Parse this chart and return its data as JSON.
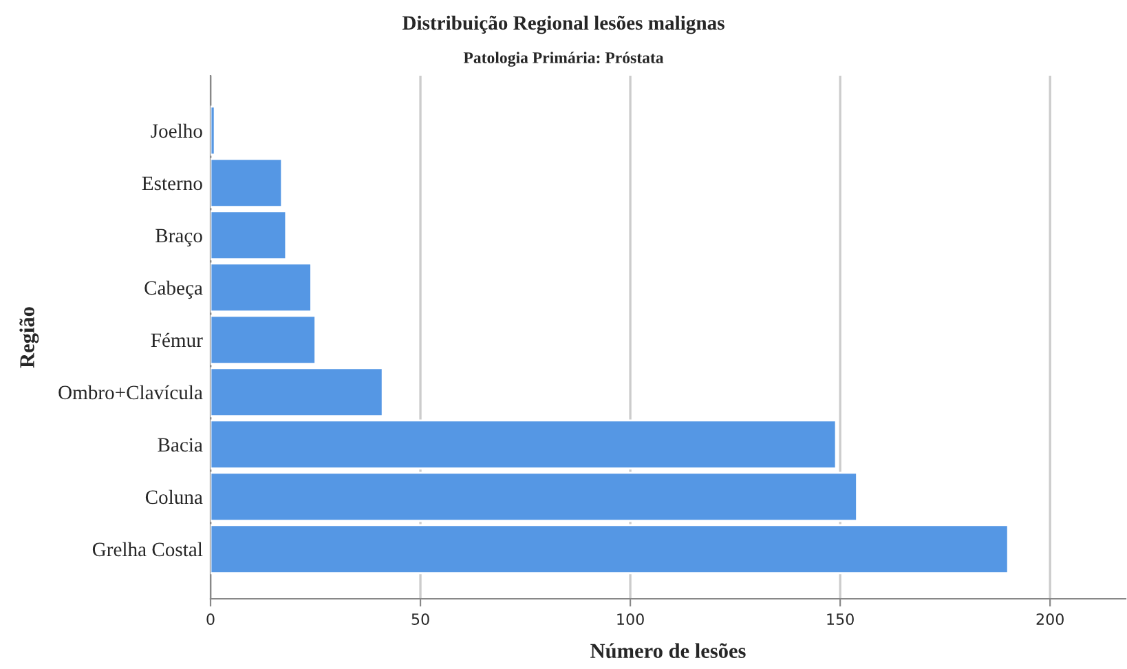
{
  "chart_data": {
    "type": "bar",
    "orientation": "horizontal",
    "title": "Distribuição Regional lesões malignas",
    "subtitle": "Patologia Primária: Próstata",
    "xlabel": "Número de lesões",
    "ylabel": "Região",
    "categories": [
      "Joelho",
      "Esterno",
      "Braço",
      "Cabeça",
      "Fémur",
      "Ombro+Clavícula",
      "Bacia",
      "Coluna",
      "Grelha Costal"
    ],
    "values": [
      1,
      17,
      18,
      24,
      25,
      41,
      149,
      154,
      190
    ],
    "color": "#5597e4",
    "xlim": [
      0,
      218
    ],
    "xticks": [
      0,
      50,
      100,
      150,
      200
    ],
    "grid": "x",
    "legend": false
  }
}
